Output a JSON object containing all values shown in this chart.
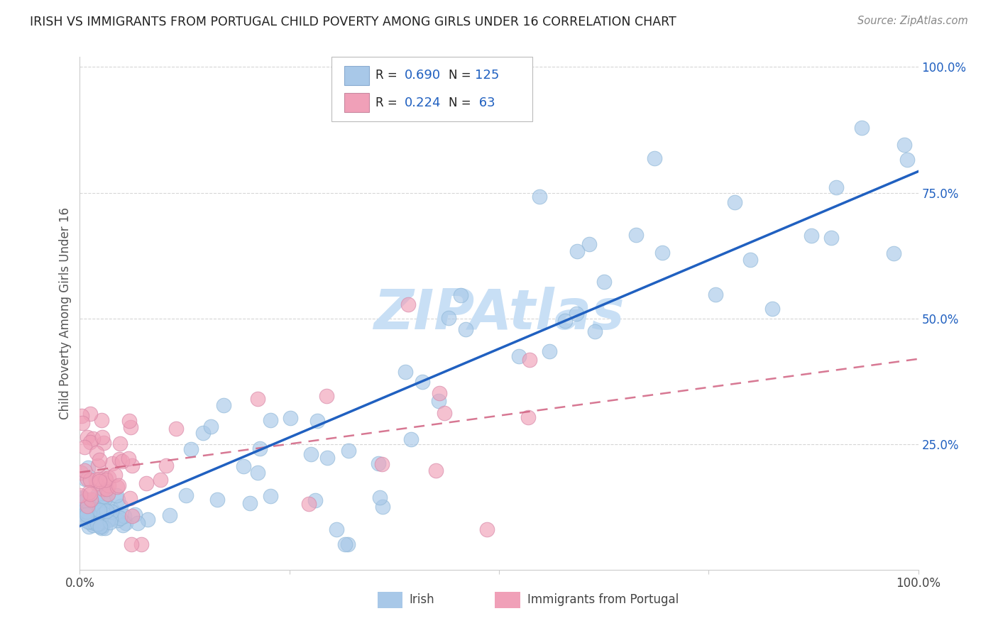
{
  "title": "IRISH VS IMMIGRANTS FROM PORTUGAL CHILD POVERTY AMONG GIRLS UNDER 16 CORRELATION CHART",
  "source": "Source: ZipAtlas.com",
  "ylabel": "Child Poverty Among Girls Under 16",
  "irish_R": "0.690",
  "irish_N": "125",
  "portugal_R": "0.224",
  "portugal_N": "63",
  "irish_color": "#a8c8e8",
  "irish_line_color": "#2060c0",
  "portugal_color": "#f0a0b8",
  "portugal_line_color": "#d06080",
  "watermark_color": "#c8dff5",
  "background_color": "#ffffff",
  "grid_color": "#cccccc",
  "title_color": "#222222",
  "tick_color": "#2060c0"
}
